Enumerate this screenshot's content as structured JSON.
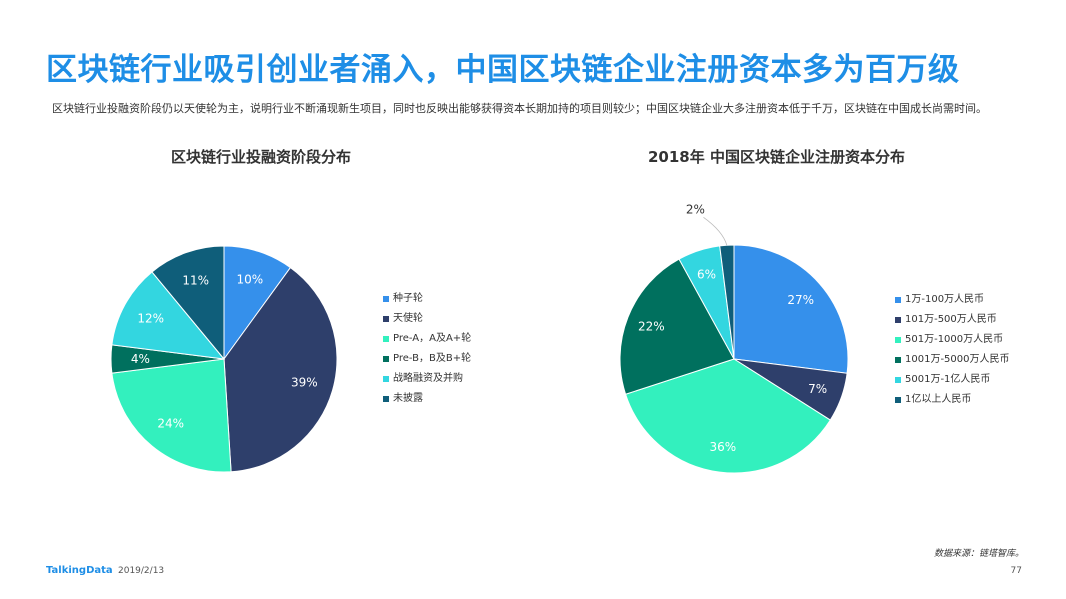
{
  "header": {
    "title": "区块链行业吸引创业者涌入，中国区块链企业注册资本多为百万级",
    "subtitle": "区块链行业投融资阶段仍以天使轮为主，说明行业不断涌现新生项目，同时也反映出能够获得资本长期加持的项目则较少；中国区块链企业大多注册资本低于千万，区块链在中国成长尚需时间。"
  },
  "chart_data": [
    {
      "type": "pie",
      "title": "区块链行业投融资阶段分布",
      "categories": [
        "种子轮",
        "天使轮",
        "Pre-A，A及A+轮",
        "Pre-B，B及B+轮",
        "战略融资及并购",
        "未披露"
      ],
      "values": [
        10,
        39,
        24,
        4,
        12,
        11
      ],
      "labels": [
        "10%",
        "39%",
        "24%",
        "4%",
        "12%",
        "11%"
      ],
      "colors": [
        "#3590eb",
        "#2e3f6b",
        "#33f0be",
        "#00705e",
        "#33d6e0",
        "#0f5e7a"
      ],
      "legend_position": "right"
    },
    {
      "type": "pie",
      "title": "2018年  中国区块链企业注册资本分布",
      "categories": [
        "1万-100万人民币",
        "101万-500万人民币",
        "501万-1000万人民币",
        "1001万-5000万人民币",
        "5001万-1亿人民币",
        "1亿以上人民币"
      ],
      "values": [
        27,
        7,
        36,
        22,
        6,
        2
      ],
      "labels": [
        "27%",
        "7%",
        "36%",
        "22%",
        "6%",
        "2%"
      ],
      "colors": [
        "#3590eb",
        "#2e3f6b",
        "#33f0be",
        "#00705e",
        "#33d6e0",
        "#0f5e7a"
      ],
      "legend_position": "right"
    }
  ],
  "footer": {
    "source": "数据来源：链塔智库。",
    "brand": "TalkingData",
    "date": "2019/2/13",
    "page": "77"
  }
}
